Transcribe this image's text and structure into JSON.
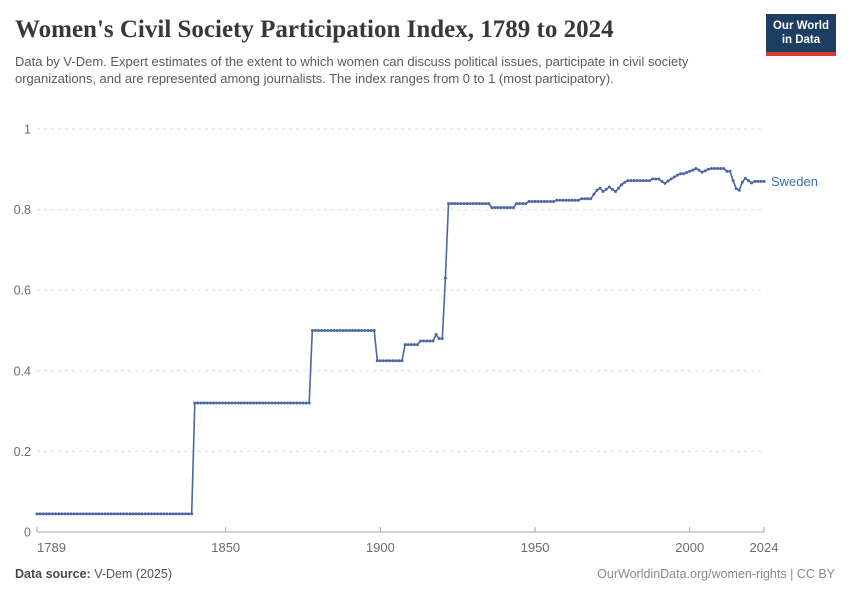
{
  "header": {
    "logo": {
      "line1": "Our World",
      "line2": "in Data",
      "bg_color": "#1d3d63",
      "accent_color": "#d93a34"
    }
  },
  "chart_data": {
    "type": "line",
    "title": "Women's Civil Society Participation Index, 1789 to 2024",
    "subtitle": "Data by V-Dem. Expert estimates of the extent to which women can discuss political issues, participate in civil society organizations, and are represented among journalists. The index ranges from 0 to 1 (most participatory).",
    "xlim": [
      1789,
      2024
    ],
    "ylim": [
      0,
      1
    ],
    "x_ticks": [
      1789,
      1850,
      1900,
      1950,
      2000,
      2024
    ],
    "y_ticks": [
      0,
      0.2,
      0.4,
      0.6,
      0.8,
      1
    ],
    "grid": "horizontal-dashed",
    "axis_color": "#a3a3a3",
    "grid_color": "#dadada",
    "tick_label_color": "#6b6b6b",
    "legend_position": "end-of-line",
    "series": [
      {
        "name": "Sweden",
        "color": "#4a67a3",
        "label_color": "#3d6cb2",
        "steps_year_start_end_value": [
          [
            1789,
            1839,
            0.045
          ],
          [
            1840,
            1877,
            0.32
          ],
          [
            1878,
            1898,
            0.5
          ],
          [
            1899,
            1907,
            0.425
          ],
          [
            1908,
            1912,
            0.465
          ],
          [
            1913,
            1917,
            0.474
          ],
          [
            1918,
            1918,
            0.49
          ],
          [
            1919,
            1920,
            0.48
          ],
          [
            1921,
            1921,
            0.63
          ],
          [
            1922,
            1935,
            0.815
          ],
          [
            1936,
            1943,
            0.805
          ],
          [
            1944,
            1947,
            0.815
          ],
          [
            1948,
            1956,
            0.82
          ],
          [
            1957,
            1964,
            0.823
          ],
          [
            1965,
            1968,
            0.827
          ],
          [
            1969,
            1969,
            0.838
          ],
          [
            1970,
            1970,
            0.848
          ],
          [
            1971,
            1971,
            0.853
          ],
          [
            1972,
            1972,
            0.845
          ],
          [
            1973,
            1973,
            0.85
          ],
          [
            1974,
            1974,
            0.856
          ],
          [
            1975,
            1975,
            0.85
          ],
          [
            1976,
            1976,
            0.845
          ],
          [
            1977,
            1977,
            0.853
          ],
          [
            1978,
            1978,
            0.862
          ],
          [
            1979,
            1979,
            0.868
          ],
          [
            1980,
            1987,
            0.872
          ],
          [
            1988,
            1990,
            0.876
          ],
          [
            1991,
            1991,
            0.87
          ],
          [
            1992,
            1992,
            0.865
          ],
          [
            1993,
            1993,
            0.871
          ],
          [
            1994,
            1994,
            0.876
          ],
          [
            1995,
            1995,
            0.881
          ],
          [
            1996,
            1996,
            0.885
          ],
          [
            1997,
            1998,
            0.889
          ],
          [
            1999,
            1999,
            0.892
          ],
          [
            2000,
            2000,
            0.895
          ],
          [
            2001,
            2001,
            0.898
          ],
          [
            2002,
            2002,
            0.902
          ],
          [
            2003,
            2003,
            0.898
          ],
          [
            2004,
            2004,
            0.893
          ],
          [
            2005,
            2005,
            0.896
          ],
          [
            2006,
            2006,
            0.9
          ],
          [
            2007,
            2011,
            0.902
          ],
          [
            2012,
            2013,
            0.895
          ],
          [
            2014,
            2014,
            0.872
          ],
          [
            2015,
            2015,
            0.852
          ],
          [
            2016,
            2016,
            0.848
          ],
          [
            2017,
            2017,
            0.868
          ],
          [
            2018,
            2018,
            0.878
          ],
          [
            2019,
            2019,
            0.872
          ],
          [
            2020,
            2020,
            0.866
          ],
          [
            2021,
            2024,
            0.87
          ]
        ]
      }
    ]
  },
  "footer": {
    "source_label": "Data source:",
    "source_value": "V-Dem (2025)",
    "credit": "OurWorldinData.org/women-rights | CC BY"
  }
}
